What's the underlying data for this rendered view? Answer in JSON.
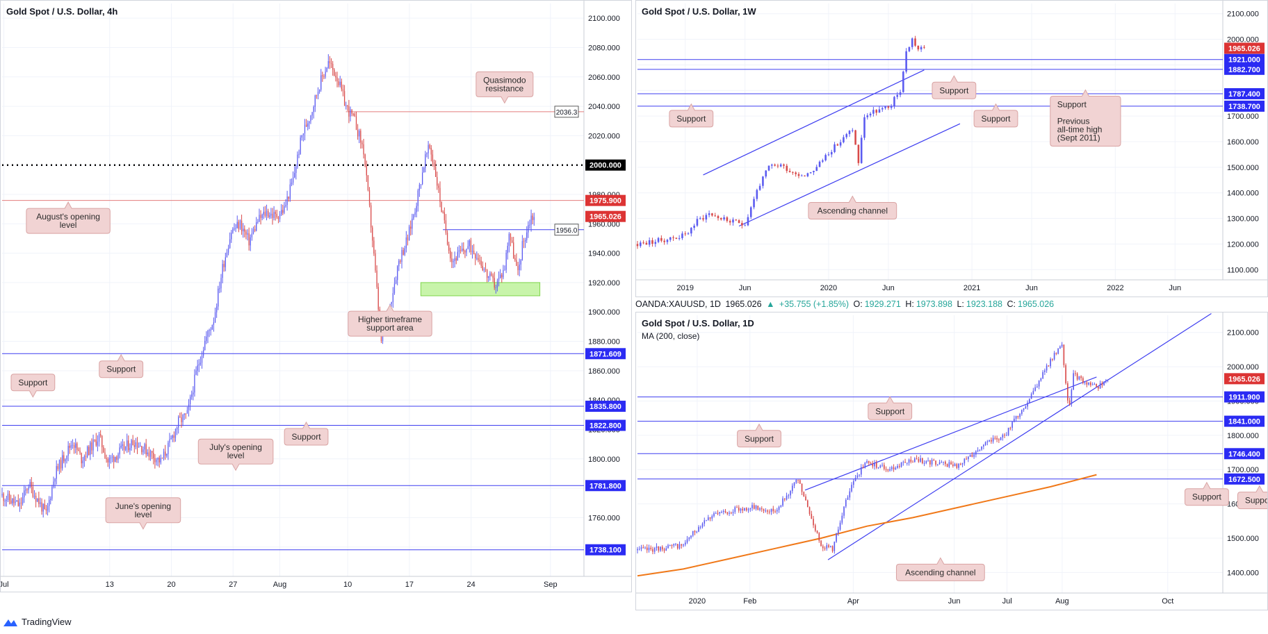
{
  "app": {
    "brand": "TradingView"
  },
  "colors": {
    "bull": "#5b5bf0",
    "bear": "#d84a4a",
    "support_line": "#3d3df0",
    "resistance_line": "#e37d7d",
    "green_zone": "#b6f08d",
    "ma": "#f07818",
    "callout_bg": "#f1d3d3",
    "callout_border": "#d9a3a3",
    "tag_blue": "#2b2bf3",
    "tag_red": "#dc3434",
    "grid": "#f0f3fa"
  },
  "ohlc_line": {
    "symbol": "OANDA:XAUUSD, 1D",
    "last": "1965.026",
    "change": "+35.755 (+1.85%)",
    "o_label": "O:",
    "o": "1929.271",
    "h_label": "H:",
    "h": "1973.898",
    "l_label": "L:",
    "l": "1923.188",
    "c_label": "C:",
    "c": "1965.026"
  },
  "chart_data": [
    {
      "id": "h4",
      "type": "candlestick",
      "title": "Gold Spot / U.S. Dollar, 4h",
      "ylim": [
        1720,
        2110
      ],
      "yticks": [
        1740,
        1760,
        1780,
        1800,
        1820,
        1840,
        1860,
        1880,
        1900,
        1920,
        1940,
        1960,
        1980,
        2000,
        2020,
        2040,
        2060,
        2080,
        2100
      ],
      "ytick_labels": [
        "1740.000",
        "1760.000",
        "1780.000",
        "1800.000",
        "1820.000",
        "1840.000",
        "1860.000",
        "1880.000",
        "1900.000",
        "1920.000",
        "1940.000",
        "1960.000",
        "1980.000",
        "2000.000",
        "2020.000",
        "2040.000",
        "2060.000",
        "2080.000",
        "2100.000"
      ],
      "x_range": [
        "Jul 1",
        "Sep 6"
      ],
      "xticks": [
        {
          "label": "Jul",
          "at": 0.2
        },
        {
          "label": "13",
          "at": 12.2
        },
        {
          "label": "20",
          "at": 19.2
        },
        {
          "label": "27",
          "at": 26.2
        },
        {
          "label": "Aug",
          "at": 31.5
        },
        {
          "label": "10",
          "at": 39.2
        },
        {
          "label": "17",
          "at": 46.2
        },
        {
          "label": "24",
          "at": 53.2
        },
        {
          "label": "Sep",
          "at": 62.2
        }
      ],
      "path": [
        [
          0,
          1775
        ],
        [
          2,
          1768
        ],
        [
          3,
          1783
        ],
        [
          5,
          1762
        ],
        [
          6,
          1790
        ],
        [
          8,
          1812
        ],
        [
          9,
          1800
        ],
        [
          11,
          1815
        ],
        [
          12,
          1798
        ],
        [
          14,
          1808
        ],
        [
          15,
          1812
        ],
        [
          17,
          1803
        ],
        [
          18,
          1798
        ],
        [
          19,
          1810
        ],
        [
          20,
          1825
        ],
        [
          21,
          1830
        ],
        [
          22,
          1858
        ],
        [
          23,
          1880
        ],
        [
          24,
          1895
        ],
        [
          25,
          1930
        ],
        [
          26,
          1955
        ],
        [
          27,
          1960
        ],
        [
          28,
          1948
        ],
        [
          29,
          1962
        ],
        [
          30,
          1968
        ],
        [
          31,
          1965
        ],
        [
          32,
          1970
        ],
        [
          33,
          1990
        ],
        [
          34,
          2020
        ],
        [
          35,
          2035
        ],
        [
          36,
          2055
        ],
        [
          37,
          2070
        ],
        [
          38,
          2060
        ],
        [
          39,
          2040
        ],
        [
          40,
          2030
        ],
        [
          41,
          2010
        ],
        [
          42,
          1950
        ],
        [
          43,
          1880
        ],
        [
          44,
          1905
        ],
        [
          45,
          1935
        ],
        [
          46,
          1950
        ],
        [
          47,
          1975
        ],
        [
          48,
          2005
        ],
        [
          48.5,
          2012
        ],
        [
          49,
          2000
        ],
        [
          50,
          1965
        ],
        [
          51,
          1935
        ],
        [
          52,
          1940
        ],
        [
          53,
          1945
        ],
        [
          54,
          1938
        ],
        [
          55,
          1925
        ],
        [
          56,
          1918
        ],
        [
          57,
          1930
        ],
        [
          57.5,
          1955
        ],
        [
          58,
          1940
        ],
        [
          58.5,
          1925
        ],
        [
          59,
          1945
        ],
        [
          60,
          1965
        ],
        [
          60.5,
          1965
        ]
      ],
      "lines": [
        {
          "value": 2036.3,
          "from": 39,
          "label": "2036.3",
          "kind": "resistance",
          "tag": "boxed"
        },
        {
          "value": 2000,
          "label": "2000.000",
          "kind": "psych",
          "tag": "black"
        },
        {
          "value": 1975.9,
          "label": "1975.900",
          "kind": "resistance",
          "tag": "red"
        },
        {
          "value": 1956,
          "from": 50,
          "label": "1956.0",
          "kind": "support",
          "tag": "boxed"
        },
        {
          "value": 1871.609,
          "label": "1871.609",
          "kind": "support",
          "tag": "blue"
        },
        {
          "value": 1835.8,
          "label": "1835.800",
          "kind": "support",
          "tag": "blue"
        },
        {
          "value": 1822.8,
          "label": "1822.800",
          "kind": "support",
          "tag": "blue"
        },
        {
          "value": 1781.8,
          "label": "1781.800",
          "kind": "support",
          "tag": "blue"
        },
        {
          "value": 1738.1,
          "label": "1738.100",
          "kind": "support",
          "tag": "blue"
        }
      ],
      "last_price": {
        "value": 1965.026,
        "label": "1965.026"
      },
      "zone": {
        "x0": 47.5,
        "x1": 61,
        "y0": 1911,
        "y1": 1920
      },
      "callouts": [
        {
          "text": [
            "Quasimodo",
            "resistance"
          ],
          "x": 57,
          "y": 2055,
          "point": "down"
        },
        {
          "text": [
            "August's opening",
            "level"
          ],
          "x": 7.5,
          "y": 1962,
          "point": "up"
        },
        {
          "text": [
            "Higher timeframe",
            "support area"
          ],
          "x": 44,
          "y": 1892,
          "point": "up"
        },
        {
          "text": [
            "Support"
          ],
          "x": 13.5,
          "y": 1861,
          "point": "up"
        },
        {
          "text": [
            "Support"
          ],
          "x": 3.5,
          "y": 1852,
          "point": "down"
        },
        {
          "text": [
            "Support"
          ],
          "x": 34.5,
          "y": 1815,
          "point": "up"
        },
        {
          "text": [
            "July's opening",
            "level"
          ],
          "x": 26.5,
          "y": 1805,
          "point": "down"
        },
        {
          "text": [
            "June's opening",
            "level"
          ],
          "x": 16,
          "y": 1765,
          "point": "down"
        }
      ]
    },
    {
      "id": "w1",
      "type": "candlestick",
      "title": "Gold Spot / U.S. Dollar, 1W",
      "ylim": [
        1060,
        2140
      ],
      "yticks": [
        1100,
        1200,
        1300,
        1400,
        1500,
        1600,
        1700,
        1800,
        1900,
        2000,
        2100
      ],
      "ytick_labels": [
        "1100.000",
        "1200.000",
        "1300.000",
        "1400.000",
        "1500.000",
        "1600.000",
        "1700.000",
        "1800.000",
        "1900.000",
        "2000.000",
        "2100.000"
      ],
      "x_range": [
        "2018-09",
        "2022-09"
      ],
      "xticks": [
        {
          "label": "2019",
          "at": 4
        },
        {
          "label": "Jun",
          "at": 9
        },
        {
          "label": "2020",
          "at": 16
        },
        {
          "label": "Jun",
          "at": 21
        },
        {
          "label": "2021",
          "at": 28
        },
        {
          "label": "Jun",
          "at": 33
        },
        {
          "label": "2022",
          "at": 40
        },
        {
          "label": "Jun",
          "at": 45
        }
      ],
      "path": [
        [
          0,
          1200
        ],
        [
          2,
          1215
        ],
        [
          4,
          1235
        ],
        [
          5,
          1290
        ],
        [
          6,
          1320
        ],
        [
          7,
          1300
        ],
        [
          8,
          1285
        ],
        [
          9,
          1280
        ],
        [
          10,
          1410
        ],
        [
          11,
          1500
        ],
        [
          12,
          1510
        ],
        [
          13,
          1480
        ],
        [
          14,
          1470
        ],
        [
          15,
          1500
        ],
        [
          16,
          1560
        ],
        [
          17,
          1600
        ],
        [
          18,
          1650
        ],
        [
          18.5,
          1520
        ],
        [
          19,
          1700
        ],
        [
          20,
          1720
        ],
        [
          21,
          1730
        ],
        [
          22,
          1800
        ],
        [
          22.5,
          1950
        ],
        [
          23,
          2000
        ],
        [
          23.5,
          1960
        ],
        [
          24,
          1965
        ]
      ],
      "lines": [
        {
          "value": 1921,
          "label": "1921.000",
          "kind": "support",
          "tag": "blue"
        },
        {
          "value": 1882.7,
          "label": "1882.700",
          "kind": "support",
          "tag": "blue"
        },
        {
          "value": 1787.4,
          "label": "1787.400",
          "kind": "support",
          "tag": "blue"
        },
        {
          "value": 1738.7,
          "label": "1738.700",
          "kind": "support",
          "tag": "blue"
        }
      ],
      "last_price": {
        "value": 1965.026,
        "label": "1965.026"
      },
      "channel": [
        [
          [
            5.5,
            1470
          ],
          [
            24,
            1880
          ]
        ],
        [
          [
            8.5,
            1270
          ],
          [
            27,
            1670
          ]
        ]
      ],
      "callouts": [
        {
          "text": [
            "Support"
          ],
          "x": 26.5,
          "y": 1800,
          "point": "up"
        },
        {
          "text": [
            "Support"
          ],
          "x": 4.5,
          "y": 1690,
          "point": "up"
        },
        {
          "text": [
            "Support"
          ],
          "x": 30,
          "y": 1690,
          "point": "up"
        },
        {
          "text": [
            "Ascending channel"
          ],
          "x": 18,
          "y": 1330,
          "point": "up"
        },
        {
          "text": [
            "Support",
            "",
            "Previous",
            "all-time high",
            "(Sept 2011)"
          ],
          "x": 37.5,
          "y": 1680,
          "point": "up"
        }
      ]
    },
    {
      "id": "d1",
      "type": "candlestick",
      "title": "Gold Spot / U.S. Dollar, 1D",
      "subtitle": "MA (200, close)",
      "ylim": [
        1340,
        2150
      ],
      "yticks": [
        1400,
        1500,
        1600,
        1700,
        1800,
        1900,
        2000,
        2100
      ],
      "ytick_labels": [
        "1400.000",
        "1500.000",
        "1600.000",
        "1700.000",
        "1800.000",
        "1900.000",
        "2000.000",
        "2100.000"
      ],
      "x_range": [
        "2019-11-20",
        "2020-11-10"
      ],
      "xticks": [
        {
          "label": "2020",
          "at": 2.6
        },
        {
          "label": "Feb",
          "at": 4.9
        },
        {
          "label": "Apr",
          "at": 9.4
        },
        {
          "label": "Jun",
          "at": 13.8
        },
        {
          "label": "Jul",
          "at": 16.1
        },
        {
          "label": "Aug",
          "at": 18.5
        },
        {
          "label": "Oct",
          "at": 23.1
        }
      ],
      "path": [
        [
          0,
          1465
        ],
        [
          1,
          1470
        ],
        [
          2,
          1480
        ],
        [
          3,
          1560
        ],
        [
          4,
          1580
        ],
        [
          5,
          1590
        ],
        [
          6,
          1580
        ],
        [
          7,
          1670
        ],
        [
          7.4,
          1590
        ],
        [
          8,
          1480
        ],
        [
          8.5,
          1470
        ],
        [
          9,
          1590
        ],
        [
          9.5,
          1680
        ],
        [
          10,
          1720
        ],
        [
          11,
          1700
        ],
        [
          12,
          1730
        ],
        [
          13,
          1720
        ],
        [
          14,
          1710
        ],
        [
          15,
          1770
        ],
        [
          16,
          1800
        ],
        [
          17,
          1900
        ],
        [
          18,
          2020
        ],
        [
          18.5,
          2060
        ],
        [
          18.8,
          1870
        ],
        [
          19,
          1980
        ],
        [
          19.5,
          1950
        ],
        [
          20,
          1940
        ],
        [
          20.5,
          1965
        ]
      ],
      "ma200": [
        [
          0,
          1390
        ],
        [
          2,
          1410
        ],
        [
          4,
          1440
        ],
        [
          6,
          1470
        ],
        [
          8,
          1500
        ],
        [
          10,
          1535
        ],
        [
          12,
          1560
        ],
        [
          14,
          1590
        ],
        [
          16,
          1620
        ],
        [
          18,
          1650
        ],
        [
          20,
          1685
        ]
      ],
      "lines": [
        {
          "value": 1911.9,
          "label": "1911.900",
          "kind": "support",
          "tag": "blue"
        },
        {
          "value": 1841,
          "label": "1841.000",
          "kind": "support",
          "tag": "blue"
        },
        {
          "value": 1746.4,
          "label": "1746.400",
          "kind": "support",
          "tag": "blue"
        },
        {
          "value": 1672.5,
          "label": "1672.500",
          "kind": "support",
          "tag": "blue"
        }
      ],
      "last_price": {
        "value": 1965.026,
        "label": "1965.026"
      },
      "channel": [
        [
          [
            8.3,
            1437
          ],
          [
            25,
            2155
          ]
        ],
        [
          [
            7.3,
            1640
          ],
          [
            20,
            1970
          ]
        ]
      ],
      "callouts": [
        {
          "text": [
            "Support"
          ],
          "x": 11,
          "y": 1870,
          "point": "up"
        },
        {
          "text": [
            "Support"
          ],
          "x": 5.3,
          "y": 1790,
          "point": "up"
        },
        {
          "text": [
            "Support"
          ],
          "x": 24.8,
          "y": 1620,
          "point": "up"
        },
        {
          "text": [
            "Support"
          ],
          "x": 27.1,
          "y": 1610,
          "point": "up"
        },
        {
          "text": [
            "Ascending channel"
          ],
          "x": 13.2,
          "y": 1400,
          "point": "up"
        }
      ]
    }
  ]
}
